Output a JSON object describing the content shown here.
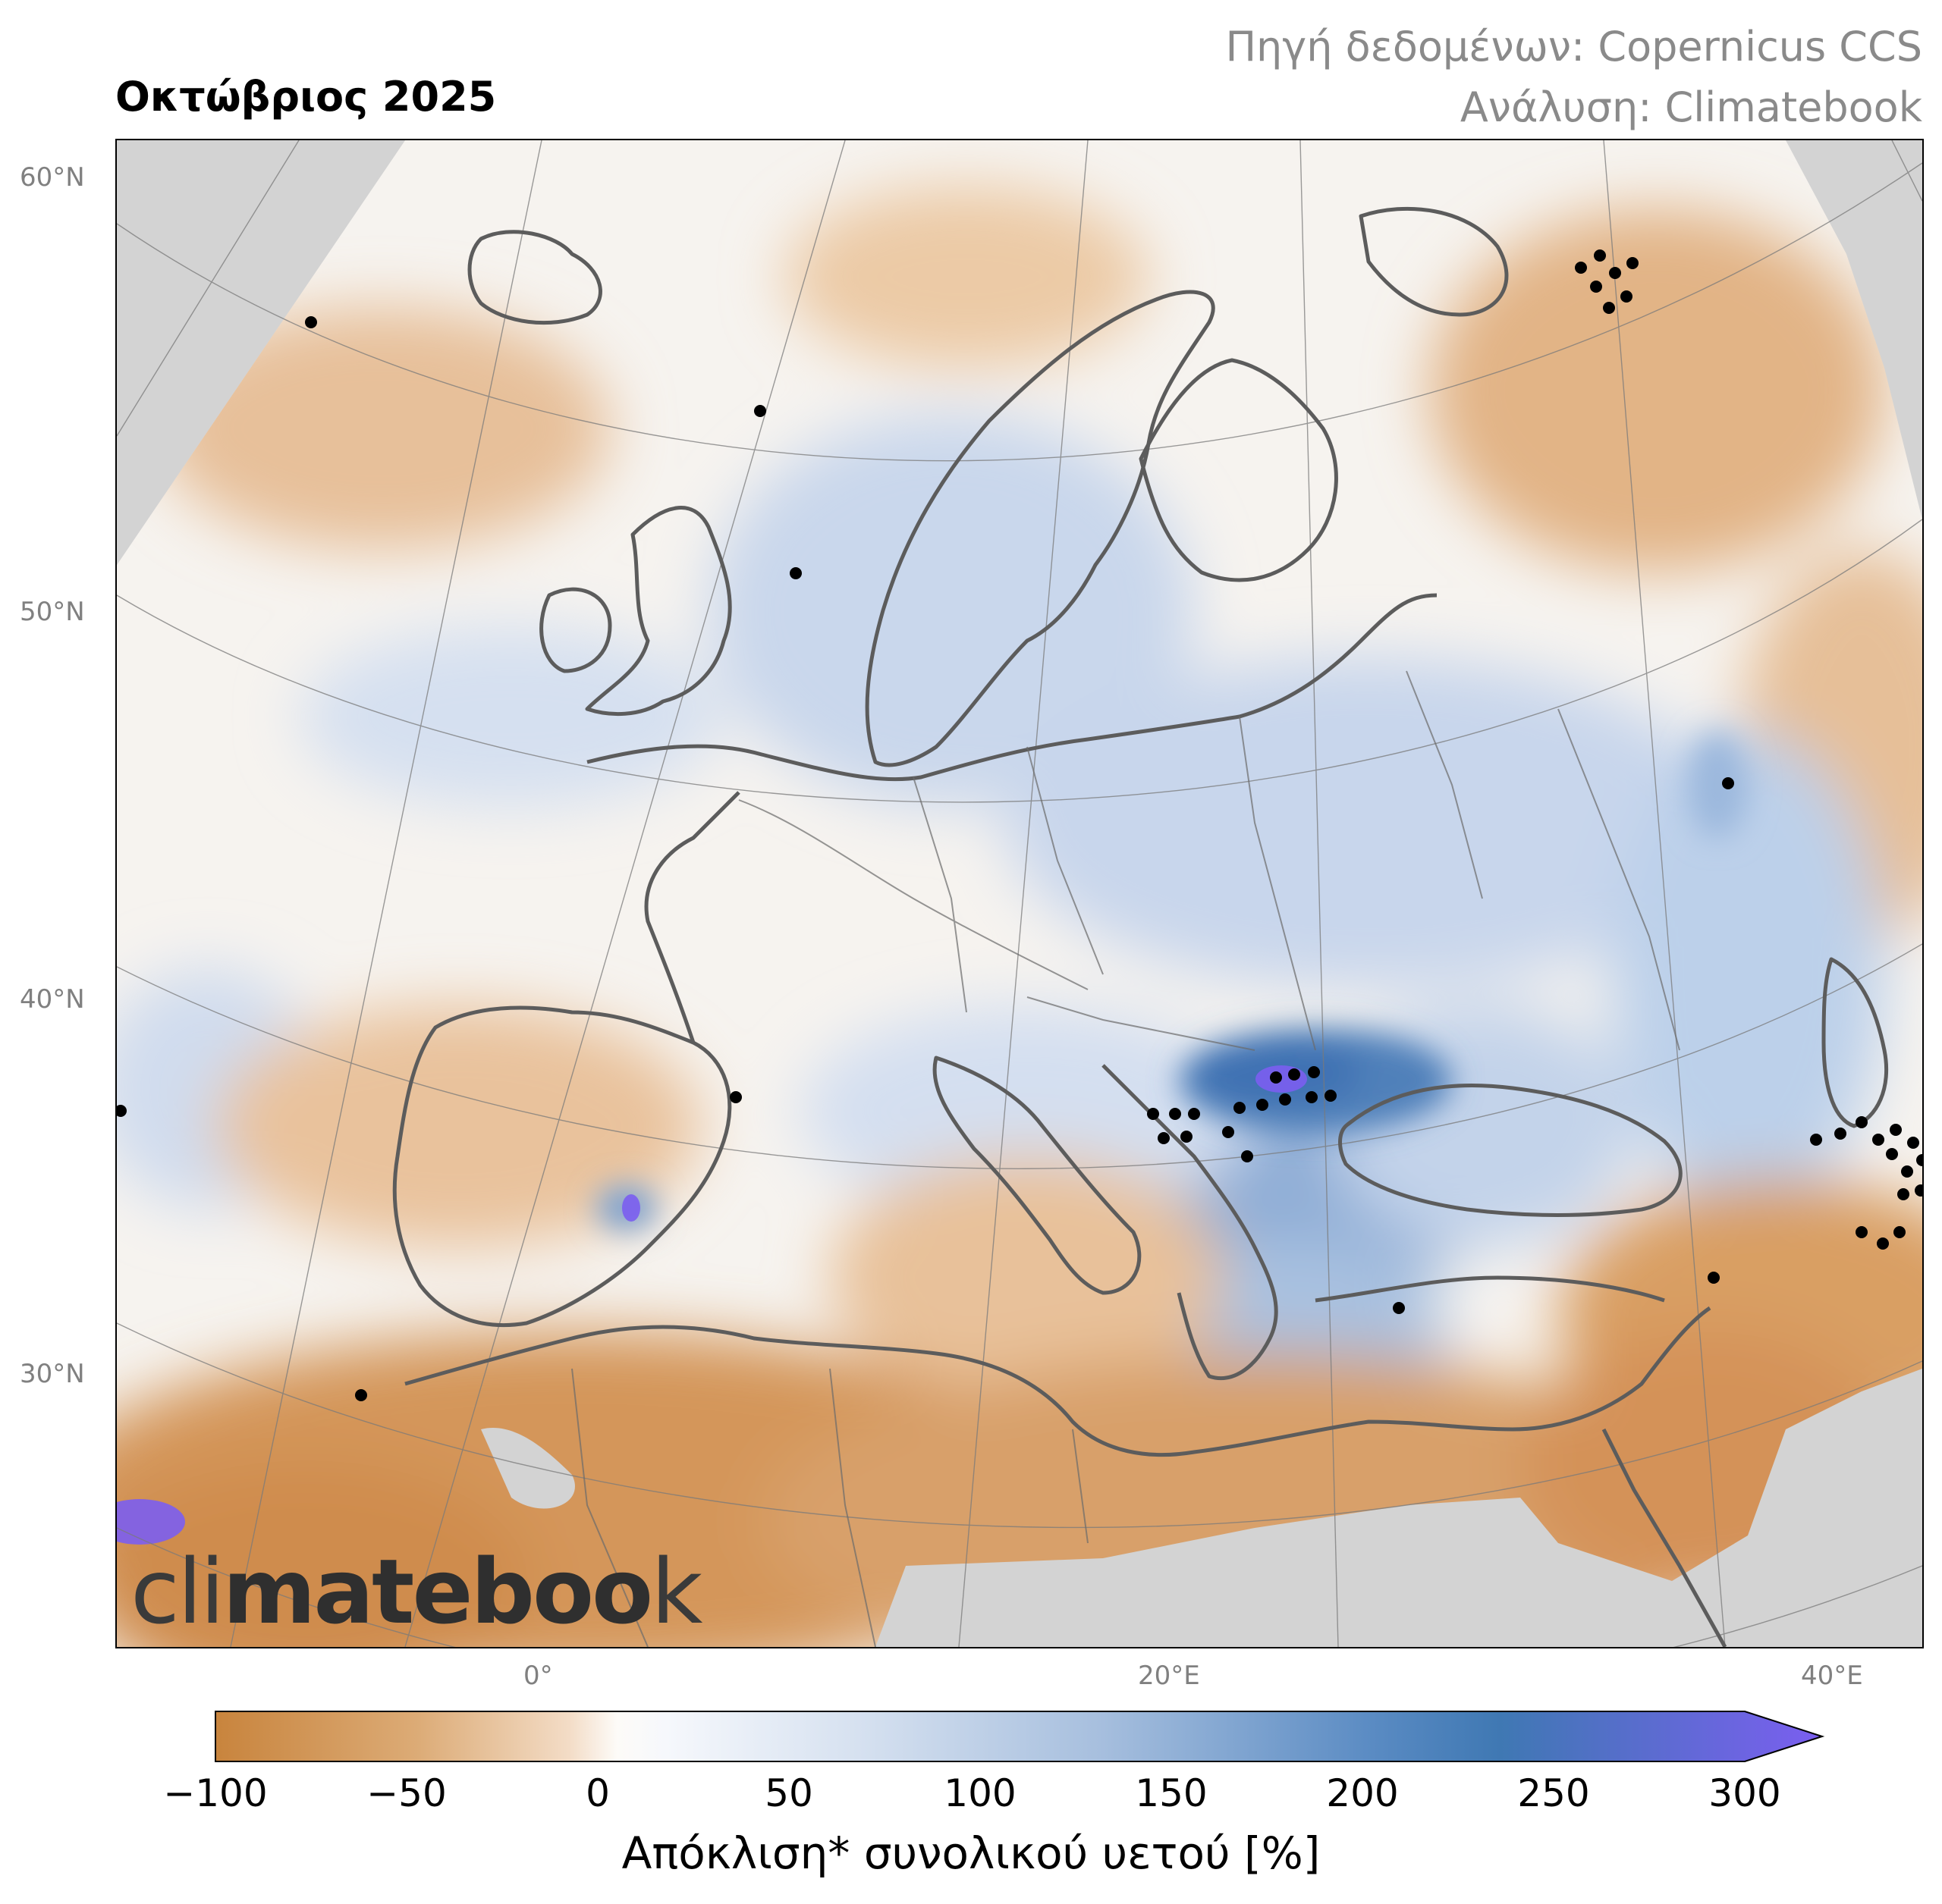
{
  "header": {
    "title": "Οκτώβριος 2025",
    "source_line1": "Πηγή δεδομένων: Copernicus CCS",
    "source_line2": "Ανάλυση: Climatebook"
  },
  "map": {
    "lat_labels": [
      "60°N",
      "50°N",
      "40°N",
      "30°N"
    ],
    "lon_labels": [
      "0°",
      "20°E",
      "40°E"
    ],
    "logo_light": "cli",
    "logo_bold": "mateboo",
    "logo_end": "k",
    "colors": {
      "land_mask": "#d3d3d3",
      "coastline": "#5c5c5c",
      "dry_strong": "#c8843d",
      "dry_mild": "#e9c39c",
      "neutral": "#fbfbfd",
      "wet_mild": "#c7d5eb",
      "wet_strong": "#4f80ba",
      "extreme": "#7b5ef0"
    }
  },
  "colorbar": {
    "ticks": [
      "−100",
      "−50",
      "0",
      "50",
      "100",
      "150",
      "200",
      "250",
      "300"
    ],
    "label": "Απόκλιση* συνολικού υετού [%]"
  }
}
